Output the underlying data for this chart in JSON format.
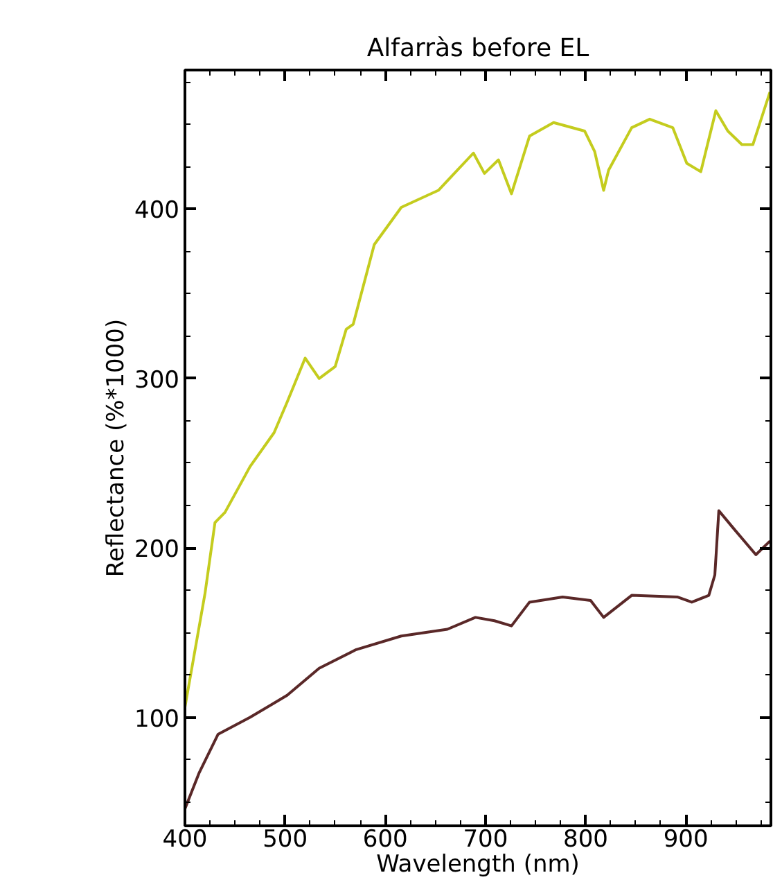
{
  "chart_data": {
    "type": "line",
    "title": "Alfarràs before EL",
    "xlabel": "Wavelength (nm)",
    "ylabel": "Reflectance (%*1000)",
    "xlim": [
      400,
      985
    ],
    "ylim": [
      36,
      482
    ],
    "xticks": [
      400,
      500,
      600,
      700,
      800,
      900
    ],
    "yticks": [
      100,
      200,
      300,
      400
    ],
    "series": [
      {
        "color": "#c4cc1e",
        "x": [
          400,
          420,
          430,
          440,
          465,
          489,
          502,
          520,
          534,
          550,
          561,
          568,
          589,
          616,
          653,
          688,
          699,
          713,
          726,
          744,
          768,
          799,
          809,
          818,
          823,
          846,
          864,
          887,
          901,
          915,
          930,
          942,
          956,
          967,
          984
        ],
        "values": [
          106,
          173,
          215,
          221,
          248,
          268,
          286,
          312,
          300,
          307,
          329,
          332,
          379,
          401,
          411,
          433,
          421,
          429,
          409,
          443,
          451,
          446,
          434,
          411,
          423,
          448,
          453,
          448,
          427,
          422,
          458,
          446,
          438,
          438,
          469
        ]
      },
      {
        "color": "#5a2828",
        "x": [
          400,
          414,
          433,
          465,
          502,
          534,
          571,
          616,
          662,
          690,
          709,
          726,
          744,
          777,
          805,
          818,
          846,
          892,
          906,
          923,
          929,
          933,
          947,
          970,
          984
        ],
        "values": [
          46,
          67,
          90,
          100,
          113,
          129,
          140,
          148,
          152,
          159,
          157,
          154,
          168,
          171,
          169,
          159,
          172,
          171,
          168,
          172,
          184,
          222,
          212,
          196,
          204
        ]
      }
    ]
  }
}
